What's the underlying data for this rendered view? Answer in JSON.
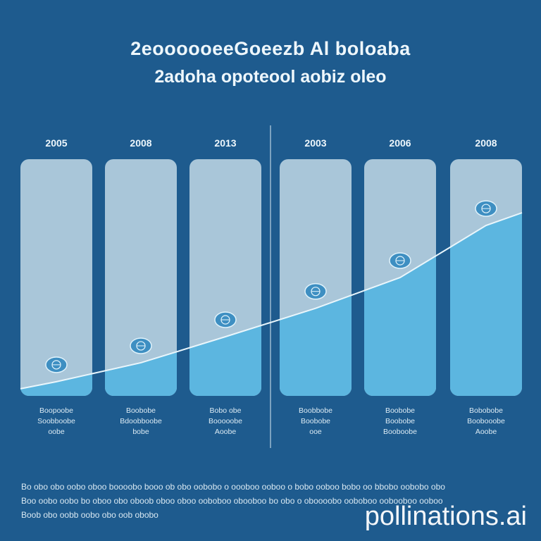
{
  "title": "2eoooooeeGoeezb Al boloaba",
  "subtitle": "2adoha opoteool aobiz oleo",
  "watermark": "pollinations.ai",
  "colors": {
    "background": "#1e5b8e",
    "panel": "#a9c6d9",
    "fill": "#5cb6e0",
    "marker": "#3e8fc2",
    "line": "#e9f6fc"
  },
  "chart_data": {
    "type": "area",
    "categories": [
      "2005",
      "2008",
      "2013",
      "2003",
      "2006",
      "2008"
    ],
    "values": [
      6,
      14,
      25,
      37,
      50,
      72
    ],
    "ylim": [
      0,
      100
    ],
    "category_descriptions": [
      [
        "Boopoobe",
        "Soobboobe",
        "oobe"
      ],
      [
        "Boobobe",
        "Bdoobboobe",
        "bobe"
      ],
      [
        "Bobo obe",
        "Booooobe",
        "Aoobe"
      ],
      [
        "Boobbobe",
        "Boobobe",
        "ooe"
      ],
      [
        "Boobobe",
        "Boobobe",
        "Booboobe"
      ],
      [
        "Bobobobe",
        "Boobooobe",
        "Aoobe"
      ]
    ],
    "marker_icon": "globe-icon"
  },
  "footnotes": [
    "Bo obo obo oobo oboo boooobo booo ob obo oobobo o oooboo ooboo o bobo ooboo bobo oo bbobo oobobo obo",
    "Boo oobo oobo bo oboo obo oboob oboo oboo ooboboo obooboo bo obo o oboooobo ooboboo oobooboo ooboo",
    "Boob obo oobb oobo obo oob obobo"
  ]
}
